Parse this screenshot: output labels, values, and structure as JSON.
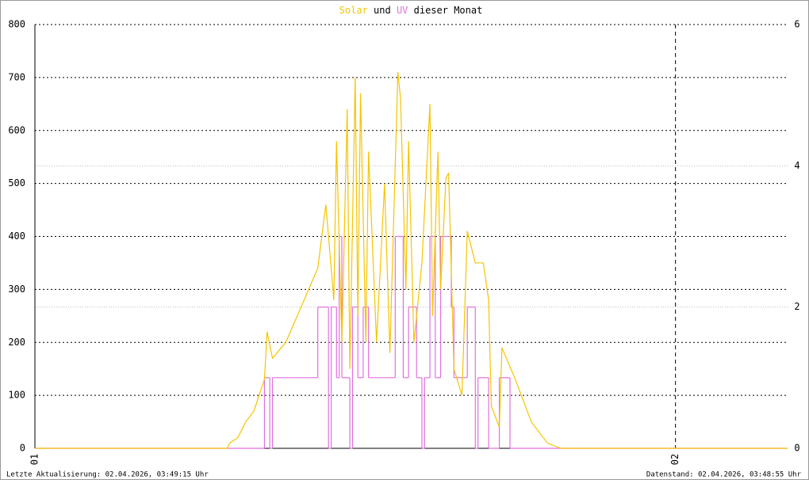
{
  "chart_data": {
    "type": "line",
    "title": [
      "Solar",
      "und",
      "UV",
      "dieser Monat"
    ],
    "xlim": [
      0,
      28.2
    ],
    "xticks": [
      {
        "value": 0,
        "label": "01"
      },
      {
        "value": 24,
        "label": "02"
      }
    ],
    "ylim": [
      0,
      800
    ],
    "yticks": [
      0,
      100,
      200,
      300,
      400,
      500,
      600,
      700,
      800
    ],
    "y2lim": [
      0,
      6
    ],
    "y2ticks": [
      0,
      2,
      4,
      6
    ],
    "grid": true,
    "series": [
      {
        "name": "Solar",
        "color": "#f5c400",
        "x": [
          0,
          7.2,
          7.3,
          7.6,
          7.9,
          8.2,
          8.6,
          8.7,
          8.9,
          9.4,
          10.0,
          10.6,
          10.9,
          11.2,
          11.3,
          11.5,
          11.7,
          11.8,
          12.0,
          12.1,
          12.2,
          12.4,
          12.5,
          12.8,
          13.1,
          13.3,
          13.6,
          13.7,
          13.9,
          14.0,
          14.2,
          14.5,
          14.8,
          14.9,
          15.1,
          15.2,
          15.4,
          15.5,
          15.7,
          16.0,
          16.2,
          16.5,
          16.8,
          17.0,
          17.1,
          17.4,
          17.5,
          18.0,
          18.6,
          19.2,
          19.7,
          28.2
        ],
        "values": [
          0,
          0,
          10,
          20,
          50,
          70,
          130,
          220,
          170,
          200,
          270,
          340,
          460,
          280,
          580,
          200,
          640,
          150,
          700,
          250,
          670,
          200,
          560,
          200,
          500,
          180,
          710,
          660,
          300,
          580,
          200,
          350,
          650,
          250,
          560,
          300,
          510,
          520,
          150,
          100,
          410,
          350,
          350,
          280,
          80,
          40,
          190,
          130,
          50,
          10,
          0,
          0
        ]
      },
      {
        "name": "UV",
        "color": "#e070e0",
        "axis": "y2",
        "step": true,
        "x": [
          0,
          8.6,
          8.8,
          8.9,
          10.6,
          11.0,
          11.1,
          11.3,
          11.4,
          11.5,
          11.8,
          11.9,
          12.1,
          12.3,
          12.5,
          13.5,
          13.8,
          14.0,
          14.3,
          14.5,
          14.6,
          14.8,
          15.0,
          15.2,
          15.6,
          15.7,
          16.2,
          16.5,
          16.6,
          17.0,
          17.4,
          17.8,
          28.2
        ],
        "values": [
          0,
          1,
          0,
          1,
          2,
          0,
          2,
          1,
          3,
          1,
          0,
          2,
          1,
          2,
          1,
          3,
          1,
          2,
          1,
          0,
          1,
          3,
          1,
          3,
          2,
          1,
          2,
          0,
          1,
          0,
          1,
          0,
          0
        ]
      }
    ],
    "footer_left": "Letzte Aktualisierung: 02.04.2026, 03:49:15 Uhr",
    "footer_right": "Datenstand: 02.04.2026, 03:48:55 Uhr"
  }
}
